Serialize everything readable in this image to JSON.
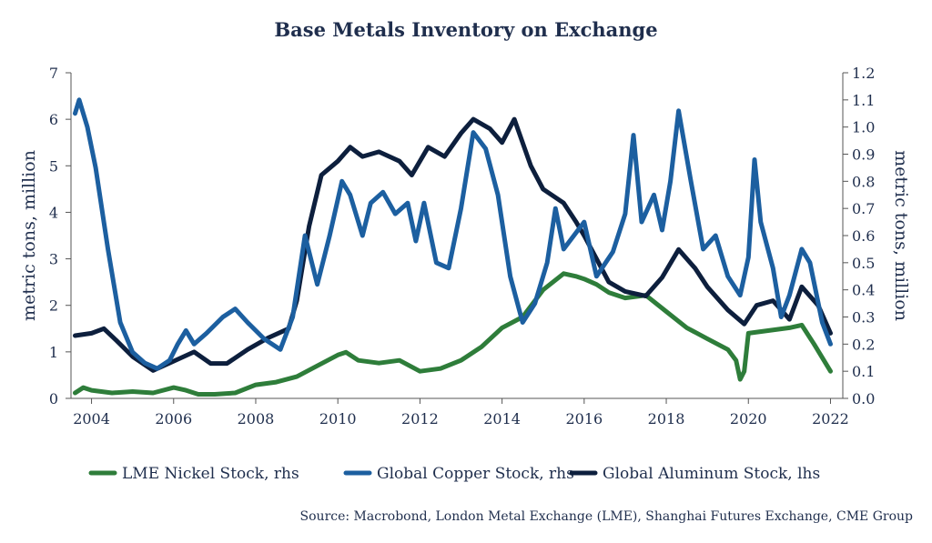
{
  "chart_data": {
    "type": "line",
    "title": "Base Metals Inventory on Exchange",
    "source": "Source: Macrobond, London Metal Exchange (LME), Shanghai Futures Exchange, CME Group",
    "x_axis": {
      "ticks": [
        2004,
        2006,
        2008,
        2010,
        2012,
        2014,
        2016,
        2018,
        2020,
        2022
      ],
      "range": [
        2003.5,
        2022.3
      ]
    },
    "y_left": {
      "label": "metric tons, million",
      "range": [
        0,
        7
      ],
      "ticks": [
        "0",
        "1",
        "2",
        "3",
        "4",
        "5",
        "6",
        "7"
      ]
    },
    "y_right": {
      "label": "metric tons, million",
      "range": [
        0,
        1.2
      ],
      "ticks": [
        "0.0",
        "0.1",
        "0.2",
        "0.3",
        "0.4",
        "0.5",
        "0.6",
        "0.7",
        "0.8",
        "0.9",
        "1.0",
        "1.1",
        "1.2"
      ]
    },
    "grid": false,
    "legend_position": "bottom",
    "series": [
      {
        "name": "LME Nickel Stock, rhs",
        "axis": "right",
        "color": "#2e7d3a",
        "points": [
          [
            2003.6,
            0.02
          ],
          [
            2003.8,
            0.04
          ],
          [
            2004.0,
            0.03
          ],
          [
            2004.5,
            0.02
          ],
          [
            2005.0,
            0.025
          ],
          [
            2005.5,
            0.02
          ],
          [
            2006.0,
            0.04
          ],
          [
            2006.3,
            0.03
          ],
          [
            2006.6,
            0.015
          ],
          [
            2007.0,
            0.015
          ],
          [
            2007.5,
            0.02
          ],
          [
            2008.0,
            0.05
          ],
          [
            2008.5,
            0.06
          ],
          [
            2009.0,
            0.08
          ],
          [
            2009.5,
            0.12
          ],
          [
            2010.0,
            0.16
          ],
          [
            2010.2,
            0.17
          ],
          [
            2010.5,
            0.14
          ],
          [
            2011.0,
            0.13
          ],
          [
            2011.5,
            0.14
          ],
          [
            2012.0,
            0.1
          ],
          [
            2012.5,
            0.11
          ],
          [
            2013.0,
            0.14
          ],
          [
            2013.5,
            0.19
          ],
          [
            2014.0,
            0.26
          ],
          [
            2014.5,
            0.3
          ],
          [
            2015.0,
            0.4
          ],
          [
            2015.5,
            0.46
          ],
          [
            2015.8,
            0.45
          ],
          [
            2016.0,
            0.44
          ],
          [
            2016.3,
            0.42
          ],
          [
            2016.6,
            0.39
          ],
          [
            2017.0,
            0.37
          ],
          [
            2017.5,
            0.38
          ],
          [
            2018.0,
            0.32
          ],
          [
            2018.5,
            0.26
          ],
          [
            2019.0,
            0.22
          ],
          [
            2019.5,
            0.18
          ],
          [
            2019.7,
            0.14
          ],
          [
            2019.8,
            0.07
          ],
          [
            2019.9,
            0.1
          ],
          [
            2020.0,
            0.24
          ],
          [
            2020.5,
            0.25
          ],
          [
            2021.0,
            0.26
          ],
          [
            2021.3,
            0.27
          ],
          [
            2021.6,
            0.2
          ],
          [
            2022.0,
            0.1
          ]
        ]
      },
      {
        "name": "Global Copper Stock, rhs",
        "axis": "right",
        "color": "#1c5fa0",
        "points": [
          [
            2003.6,
            1.05
          ],
          [
            2003.7,
            1.1
          ],
          [
            2003.9,
            1.0
          ],
          [
            2004.1,
            0.85
          ],
          [
            2004.4,
            0.55
          ],
          [
            2004.7,
            0.28
          ],
          [
            2005.0,
            0.17
          ],
          [
            2005.3,
            0.13
          ],
          [
            2005.6,
            0.11
          ],
          [
            2005.9,
            0.14
          ],
          [
            2006.1,
            0.2
          ],
          [
            2006.3,
            0.25
          ],
          [
            2006.5,
            0.2
          ],
          [
            2006.8,
            0.24
          ],
          [
            2007.2,
            0.3
          ],
          [
            2007.5,
            0.33
          ],
          [
            2007.8,
            0.28
          ],
          [
            2008.2,
            0.22
          ],
          [
            2008.6,
            0.18
          ],
          [
            2008.9,
            0.3
          ],
          [
            2009.2,
            0.6
          ],
          [
            2009.5,
            0.42
          ],
          [
            2009.8,
            0.6
          ],
          [
            2010.1,
            0.8
          ],
          [
            2010.3,
            0.75
          ],
          [
            2010.6,
            0.6
          ],
          [
            2010.8,
            0.72
          ],
          [
            2011.1,
            0.76
          ],
          [
            2011.4,
            0.68
          ],
          [
            2011.7,
            0.72
          ],
          [
            2011.9,
            0.58
          ],
          [
            2012.1,
            0.72
          ],
          [
            2012.4,
            0.5
          ],
          [
            2012.7,
            0.48
          ],
          [
            2013.0,
            0.7
          ],
          [
            2013.3,
            0.98
          ],
          [
            2013.6,
            0.92
          ],
          [
            2013.9,
            0.75
          ],
          [
            2014.2,
            0.45
          ],
          [
            2014.5,
            0.28
          ],
          [
            2014.8,
            0.35
          ],
          [
            2015.1,
            0.5
          ],
          [
            2015.3,
            0.7
          ],
          [
            2015.5,
            0.55
          ],
          [
            2016.0,
            0.65
          ],
          [
            2016.3,
            0.45
          ],
          [
            2016.7,
            0.54
          ],
          [
            2017.0,
            0.68
          ],
          [
            2017.2,
            0.97
          ],
          [
            2017.4,
            0.65
          ],
          [
            2017.7,
            0.75
          ],
          [
            2017.9,
            0.62
          ],
          [
            2018.1,
            0.8
          ],
          [
            2018.3,
            1.06
          ],
          [
            2018.6,
            0.8
          ],
          [
            2018.9,
            0.55
          ],
          [
            2019.2,
            0.6
          ],
          [
            2019.5,
            0.45
          ],
          [
            2019.8,
            0.38
          ],
          [
            2020.0,
            0.52
          ],
          [
            2020.15,
            0.88
          ],
          [
            2020.3,
            0.65
          ],
          [
            2020.6,
            0.48
          ],
          [
            2020.8,
            0.3
          ],
          [
            2021.0,
            0.38
          ],
          [
            2021.3,
            0.55
          ],
          [
            2021.5,
            0.5
          ],
          [
            2021.8,
            0.28
          ],
          [
            2022.0,
            0.2
          ]
        ]
      },
      {
        "name": "Global Aluminum Stock, lhs",
        "axis": "left",
        "color": "#0d1f3d",
        "points": [
          [
            2003.6,
            1.35
          ],
          [
            2004.0,
            1.4
          ],
          [
            2004.3,
            1.5
          ],
          [
            2004.6,
            1.25
          ],
          [
            2005.0,
            0.9
          ],
          [
            2005.5,
            0.6
          ],
          [
            2006.0,
            0.8
          ],
          [
            2006.5,
            1.0
          ],
          [
            2006.9,
            0.75
          ],
          [
            2007.3,
            0.75
          ],
          [
            2007.8,
            1.05
          ],
          [
            2008.3,
            1.3
          ],
          [
            2008.8,
            1.5
          ],
          [
            2009.0,
            2.1
          ],
          [
            2009.3,
            3.7
          ],
          [
            2009.6,
            4.8
          ],
          [
            2010.0,
            5.1
          ],
          [
            2010.3,
            5.4
          ],
          [
            2010.6,
            5.2
          ],
          [
            2011.0,
            5.3
          ],
          [
            2011.5,
            5.1
          ],
          [
            2011.8,
            4.8
          ],
          [
            2012.2,
            5.4
          ],
          [
            2012.6,
            5.2
          ],
          [
            2013.0,
            5.7
          ],
          [
            2013.3,
            6.0
          ],
          [
            2013.7,
            5.8
          ],
          [
            2014.0,
            5.5
          ],
          [
            2014.3,
            6.0
          ],
          [
            2014.7,
            5.0
          ],
          [
            2015.0,
            4.5
          ],
          [
            2015.5,
            4.2
          ],
          [
            2015.8,
            3.8
          ],
          [
            2016.0,
            3.5
          ],
          [
            2016.3,
            3.0
          ],
          [
            2016.6,
            2.5
          ],
          [
            2017.0,
            2.3
          ],
          [
            2017.5,
            2.2
          ],
          [
            2017.9,
            2.6
          ],
          [
            2018.3,
            3.2
          ],
          [
            2018.7,
            2.8
          ],
          [
            2019.0,
            2.4
          ],
          [
            2019.5,
            1.9
          ],
          [
            2019.9,
            1.6
          ],
          [
            2020.2,
            2.0
          ],
          [
            2020.6,
            2.1
          ],
          [
            2021.0,
            1.7
          ],
          [
            2021.3,
            2.4
          ],
          [
            2021.7,
            2.0
          ],
          [
            2022.0,
            1.4
          ]
        ]
      }
    ]
  }
}
